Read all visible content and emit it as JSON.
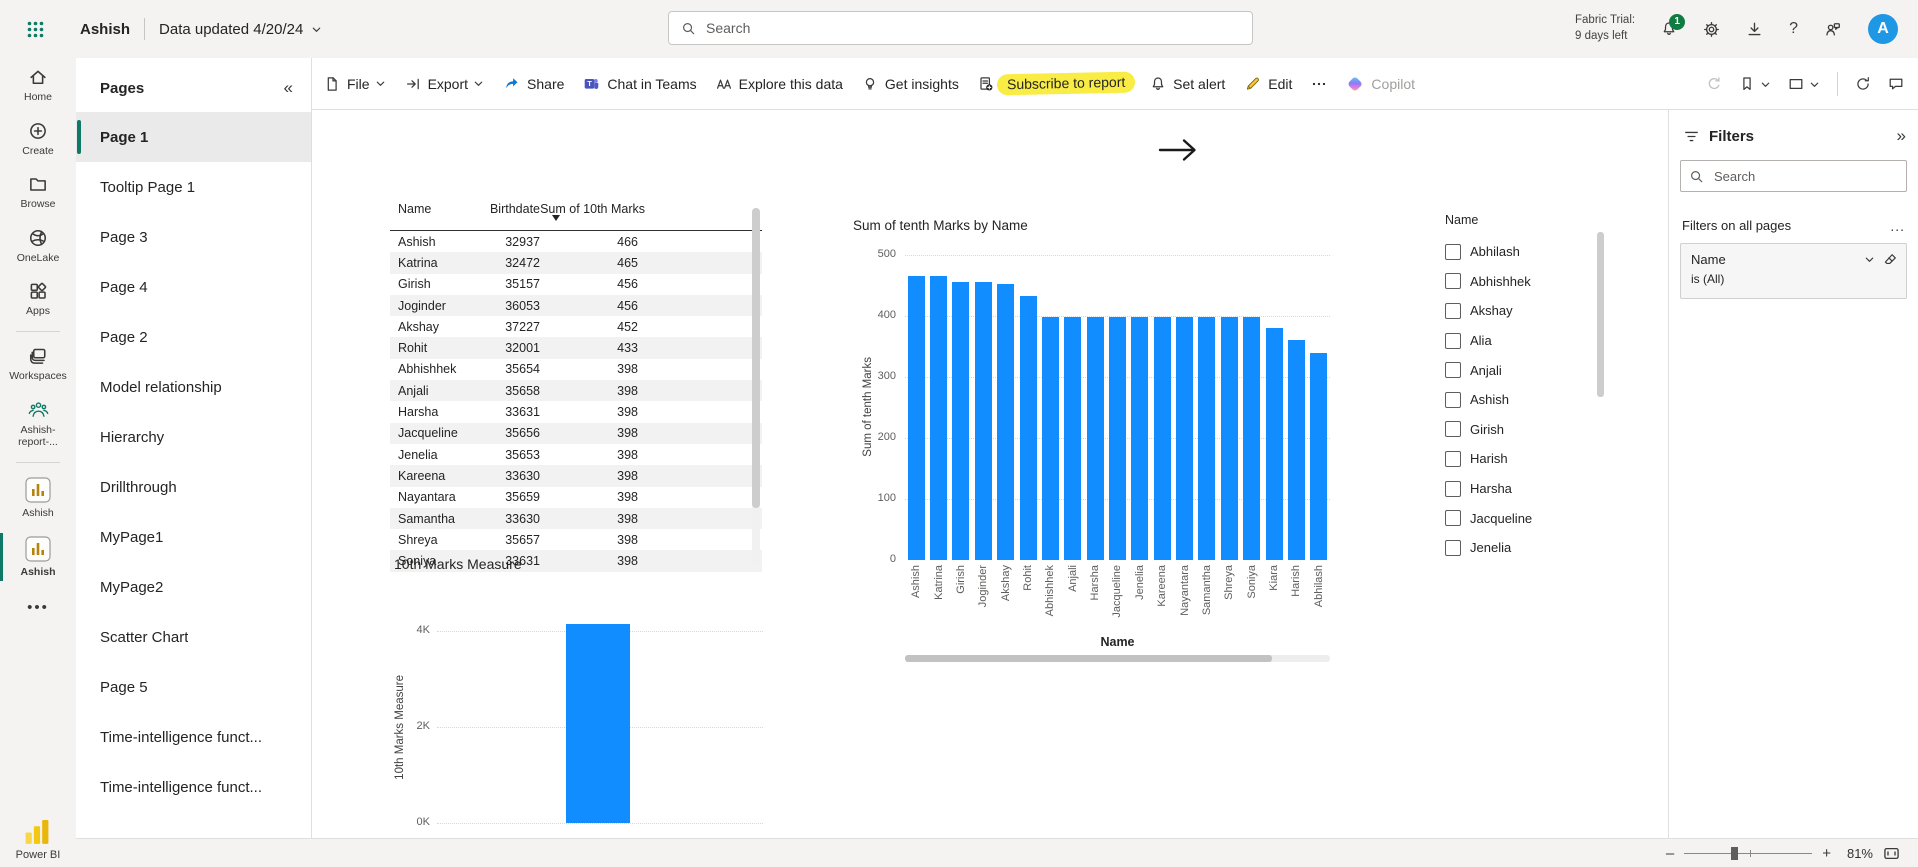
{
  "topbar": {
    "app_name": "Ashish",
    "data_updated": "Data updated 4/20/24",
    "search_placeholder": "Search",
    "trial_line1": "Fabric Trial:",
    "trial_line2": "9 days left",
    "notification_count": "1",
    "help_glyph": "?",
    "avatar_letter": "A"
  },
  "left_rail": {
    "items": [
      {
        "label": "Home",
        "icon": "home-icon"
      },
      {
        "label": "Create",
        "icon": "create-icon"
      },
      {
        "label": "Browse",
        "icon": "browse-icon"
      },
      {
        "label": "OneLake",
        "icon": "onelake-icon"
      },
      {
        "label": "Apps",
        "icon": "apps-icon"
      },
      {
        "divider": true
      },
      {
        "label": "Workspaces",
        "icon": "workspaces-icon"
      },
      {
        "label": "Ashish-report-...",
        "icon": "people-icon"
      },
      {
        "divider": true
      },
      {
        "label": "Ashish",
        "icon": "mini-chart-icon"
      },
      {
        "label": "Ashish",
        "icon": "mini-chart-icon",
        "selected": true
      }
    ],
    "more_label": "•••",
    "brand": "Power BI"
  },
  "pages_panel": {
    "title": "Pages",
    "collapse_glyph": "«",
    "items": [
      {
        "label": "Page 1",
        "selected": true
      },
      {
        "label": "Tooltip Page 1"
      },
      {
        "label": "Page 3"
      },
      {
        "label": "Page 4"
      },
      {
        "label": "Page 2"
      },
      {
        "label": "Model relationship"
      },
      {
        "label": "Hierarchy"
      },
      {
        "label": "Drillthrough"
      },
      {
        "label": "MyPage1"
      },
      {
        "label": "MyPage2"
      },
      {
        "label": "Scatter Chart"
      },
      {
        "label": "Page 5"
      },
      {
        "label": "Time-intelligence funct..."
      },
      {
        "label": "Time-intelligence funct..."
      }
    ]
  },
  "toolbar": {
    "items": [
      {
        "label": "File",
        "icon": "file-icon",
        "chevron": true
      },
      {
        "label": "Export",
        "icon": "export-icon",
        "chevron": true
      },
      {
        "label": "Share",
        "icon": "share-icon"
      },
      {
        "label": "Chat in Teams",
        "icon": "teams-icon"
      },
      {
        "label": "Explore this data",
        "icon": "explore-icon"
      },
      {
        "label": "Get insights",
        "icon": "insights-icon"
      },
      {
        "label": "Subscribe to report",
        "icon": "subscribe-icon",
        "highlighted": true
      },
      {
        "label": "Set alert",
        "icon": "alert-icon"
      },
      {
        "label": "Edit",
        "icon": "edit-icon"
      },
      {
        "label": "",
        "icon": "more-icon",
        "name": "more-options"
      },
      {
        "label": "Copilot",
        "icon": "copilot-icon",
        "disabled": true
      }
    ],
    "right_items": [
      {
        "icon": "reset-icon",
        "name": "reset-default-view",
        "disabled": true
      },
      {
        "icon": "bookmark-icon",
        "name": "bookmarks",
        "chevron": true
      },
      {
        "icon": "view-icon",
        "name": "view",
        "chevron": true
      },
      {
        "divider": true
      },
      {
        "icon": "refresh-icon",
        "name": "refresh-visuals"
      },
      {
        "icon": "comment-icon",
        "name": "comments"
      }
    ]
  },
  "slicer": {
    "title": "Name",
    "items": [
      "Abhilash",
      "Abhishhek",
      "Akshay",
      "Alia",
      "Anjali",
      "Ashish",
      "Girish",
      "Harish",
      "Harsha",
      "Jacqueline",
      "Jenelia"
    ],
    "checked": []
  },
  "filters_pane": {
    "title": "Filters",
    "collapse_glyph": "»",
    "search_placeholder": "Search",
    "section_label": "Filters on all pages",
    "more_label": "...",
    "card": {
      "field": "Name",
      "condition": "is (All)"
    }
  },
  "status_bar": {
    "zoom_out": "–",
    "zoom_in": "+",
    "zoom_percent": "81%"
  },
  "chart_data": [
    {
      "type": "bar",
      "title": "Sum of tenth Marks by Name",
      "xlabel": "Name",
      "ylabel": "Sum of tenth Marks",
      "ylim": [
        0,
        500
      ],
      "yticks": [
        0,
        100,
        200,
        300,
        400,
        500
      ],
      "grid": true,
      "bar_color": "#118DFF",
      "categories": [
        "Ashish",
        "Katrina",
        "Girish",
        "Joginder",
        "Akshay",
        "Rohit",
        "Abhishhek",
        "Anjali",
        "Harsha",
        "Jacqueline",
        "Jenelia",
        "Kareena",
        "Nayantara",
        "Samantha",
        "Shreya",
        "Soniya",
        "Kiara",
        "Harish",
        "Abhilash"
      ],
      "values": [
        466,
        465,
        456,
        456,
        452,
        433,
        398,
        398,
        398,
        398,
        398,
        398,
        398,
        398,
        398,
        398,
        380,
        360,
        340
      ]
    },
    {
      "type": "bar",
      "title": "10th Marks Measure",
      "ylabel": "10th Marks Measure",
      "ylim": [
        0,
        4400
      ],
      "ytick_labels": [
        "0K",
        "2K",
        "4K"
      ],
      "ytick_values": [
        0,
        2000,
        4000
      ],
      "grid": true,
      "bar_color": "#118DFF",
      "categories": [
        ""
      ],
      "values": [
        4150
      ]
    },
    {
      "type": "table",
      "columns": [
        "Name",
        "Birthdate",
        "Sum of 10th Marks"
      ],
      "sort_column": "Sum of 10th Marks",
      "sort_direction": "desc",
      "rows": [
        [
          "Ashish",
          "32937",
          "466"
        ],
        [
          "Katrina",
          "32472",
          "465"
        ],
        [
          "Girish",
          "35157",
          "456"
        ],
        [
          "Joginder",
          "36053",
          "456"
        ],
        [
          "Akshay",
          "37227",
          "452"
        ],
        [
          "Rohit",
          "32001",
          "433"
        ],
        [
          "Abhishhek",
          "35654",
          "398"
        ],
        [
          "Anjali",
          "35658",
          "398"
        ],
        [
          "Harsha",
          "33631",
          "398"
        ],
        [
          "Jacqueline",
          "35656",
          "398"
        ],
        [
          "Jenelia",
          "35653",
          "398"
        ],
        [
          "Kareena",
          "33630",
          "398"
        ],
        [
          "Nayantara",
          "35659",
          "398"
        ],
        [
          "Samantha",
          "33630",
          "398"
        ],
        [
          "Shreya",
          "35657",
          "398"
        ],
        [
          "Soniya",
          "33631",
          "398"
        ]
      ]
    }
  ]
}
